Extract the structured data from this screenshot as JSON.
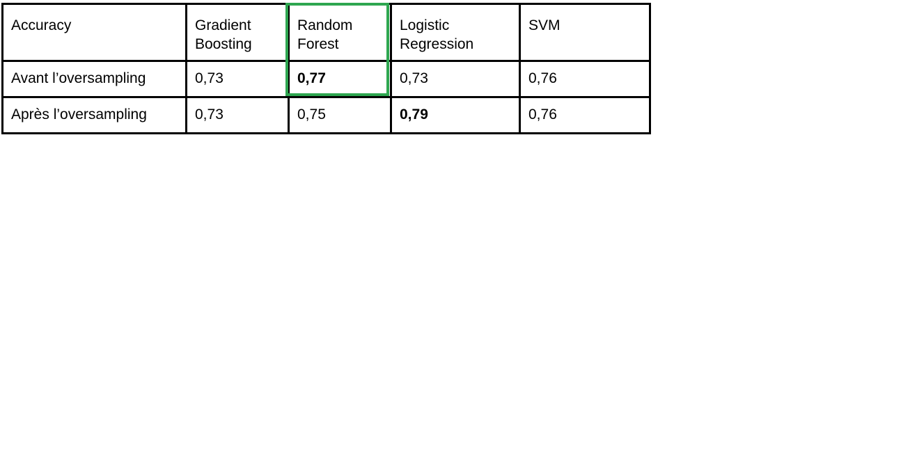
{
  "table": {
    "header": [
      "Accuracy",
      "Gradient Boosting",
      "Random Forest",
      "Logistic Regression",
      "SVM"
    ],
    "rows": [
      {
        "label": "Avant l’oversampling",
        "values": [
          "0,73",
          "0,77",
          "0,73",
          "0,76"
        ]
      },
      {
        "label": "Après l’oversampling",
        "values": [
          "0,73",
          "0,75",
          "0,79",
          "0,76"
        ]
      }
    ],
    "bold_cells": [
      "Avant l’oversampling / Random Forest",
      "Après l’oversampling / Logistic Regression"
    ],
    "highlighted_column": "Random Forest",
    "highlight_color": "#2ea650"
  }
}
